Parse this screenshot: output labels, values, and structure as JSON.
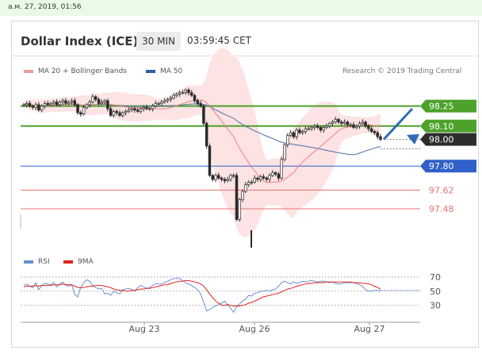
{
  "header": {
    "timestamp": "а.м. 27, 2019, 01:56",
    "title": "Dollar Index (ICE)",
    "interval": "30 MIN",
    "time": "03:59:45 CET",
    "credit": "Research © 2019 Trading Central"
  },
  "legend": {
    "ma20": "MA 20 + Bollinger Bands",
    "ma50": "MA 50",
    "rsi": "RSI",
    "ma9": "9MA"
  },
  "colors": {
    "candle": "#2b2b2b",
    "bollinger_fill": "#fde3e3",
    "ma20": "#f08080",
    "ma50": "#4a6fa5",
    "resistance": "#4ca22b",
    "support": "#3061c9",
    "minor_support": "#e57373",
    "rsi": "#6a8fd0",
    "rsi_ma": "#e02020",
    "arrow": "#2f6cb5"
  },
  "chart_data": [
    {
      "type": "candlestick",
      "x_ticks": [
        "Aug 23",
        "Aug 26",
        "Aug 27"
      ],
      "levels": [
        {
          "value": 98.25,
          "label": "98.25",
          "kind": "resistance"
        },
        {
          "value": 98.1,
          "label": "98.10",
          "kind": "resistance"
        },
        {
          "value": 98.0,
          "label": "98.00",
          "kind": "last"
        },
        {
          "value": 97.8,
          "label": "97.80",
          "kind": "support"
        },
        {
          "value": 97.62,
          "label": "97.62",
          "kind": "minor_support"
        },
        {
          "value": 97.48,
          "label": "97.48",
          "kind": "minor_support"
        }
      ],
      "ylim": [
        97.2,
        98.45
      ],
      "closes": [
        98.26,
        98.27,
        98.25,
        98.24,
        98.26,
        98.22,
        98.25,
        98.27,
        98.26,
        98.27,
        98.28,
        98.26,
        98.28,
        98.29,
        98.27,
        98.28,
        98.29,
        98.26,
        98.2,
        98.19,
        98.24,
        98.26,
        98.28,
        98.32,
        98.3,
        98.27,
        98.28,
        98.29,
        98.23,
        98.18,
        98.21,
        98.2,
        98.18,
        98.2,
        98.21,
        98.22,
        98.23,
        98.22,
        98.21,
        98.23,
        98.24,
        98.23,
        98.23,
        98.25,
        98.27,
        98.27,
        98.28,
        98.29,
        98.3,
        98.31,
        98.33,
        98.34,
        98.35,
        98.35,
        98.37,
        98.35,
        98.33,
        98.29,
        98.27,
        98.25,
        98.12,
        97.95,
        97.73,
        97.7,
        97.73,
        97.71,
        97.7,
        97.69,
        97.7,
        97.73,
        97.73,
        97.4,
        97.55,
        97.61,
        97.66,
        97.68,
        97.68,
        97.71,
        97.7,
        97.72,
        97.71,
        97.7,
        97.73,
        97.75,
        97.74,
        97.71,
        97.85,
        97.96,
        98.03,
        98.05,
        98.02,
        98.07,
        98.05,
        98.06,
        98.08,
        98.08,
        98.09,
        98.1,
        98.09,
        98.07,
        98.09,
        98.1,
        98.12,
        98.13,
        98.15,
        98.13,
        98.12,
        98.13,
        98.11,
        98.11,
        98.09,
        98.1,
        98.12,
        98.13,
        98.1,
        98.08,
        98.06,
        98.05,
        98.02,
        98.0
      ]
    },
    {
      "type": "line",
      "name": "RSI",
      "ylim": [
        15,
        80
      ],
      "y_ticks": [
        70,
        50,
        30
      ],
      "series": [
        {
          "name": "RSI",
          "values": [
            58,
            60,
            57,
            55,
            62,
            52,
            58,
            61,
            60,
            59,
            62,
            56,
            60,
            63,
            58,
            57,
            59,
            45,
            42,
            55,
            62,
            66,
            64,
            58,
            55,
            53,
            54,
            46,
            47,
            44,
            50,
            48,
            46,
            52,
            53,
            54,
            52,
            50,
            55,
            58,
            56,
            54,
            55,
            58,
            61,
            60,
            60,
            62,
            64,
            66,
            68,
            68,
            68,
            65,
            62,
            60,
            58,
            55,
            52,
            46,
            34,
            22,
            24,
            27,
            29,
            31,
            33,
            36,
            31,
            26,
            20,
            28,
            32,
            36,
            39,
            44,
            43,
            47,
            48,
            50,
            50,
            51,
            50,
            52,
            53,
            57,
            62,
            64,
            62,
            60,
            63,
            61,
            62,
            64,
            63,
            64,
            65,
            64,
            63,
            64,
            64,
            63,
            62,
            63,
            61,
            60,
            60,
            62,
            62,
            62,
            62,
            61,
            59,
            57,
            52,
            50,
            50,
            51,
            51,
            51
          ]
        },
        {
          "name": "9MA",
          "values": [
            56,
            57,
            57,
            57,
            58,
            57,
            58,
            58,
            58,
            58,
            59,
            59,
            59,
            60,
            59,
            59,
            59,
            57,
            55,
            55,
            55,
            56,
            57,
            57,
            58,
            58,
            58,
            57,
            56,
            55,
            53,
            52,
            51,
            51,
            50,
            50,
            51,
            51,
            52,
            53,
            53,
            54,
            54,
            55,
            56,
            57,
            58,
            59,
            59,
            61,
            62,
            63,
            64,
            64,
            65,
            65,
            64,
            63,
            62,
            60,
            57,
            52,
            46,
            41,
            36,
            33,
            30,
            30,
            31,
            30,
            29,
            29,
            29,
            30,
            31,
            33,
            34,
            36,
            38,
            40,
            42,
            43,
            44,
            45,
            46,
            47,
            49,
            51,
            53,
            54,
            55,
            57,
            58,
            59,
            60,
            61,
            61,
            62,
            62,
            62,
            62,
            63,
            63,
            63,
            63,
            63,
            63,
            63,
            63,
            63,
            62,
            62,
            62,
            61,
            61,
            60,
            59,
            57,
            55,
            53
          ]
        }
      ]
    }
  ]
}
